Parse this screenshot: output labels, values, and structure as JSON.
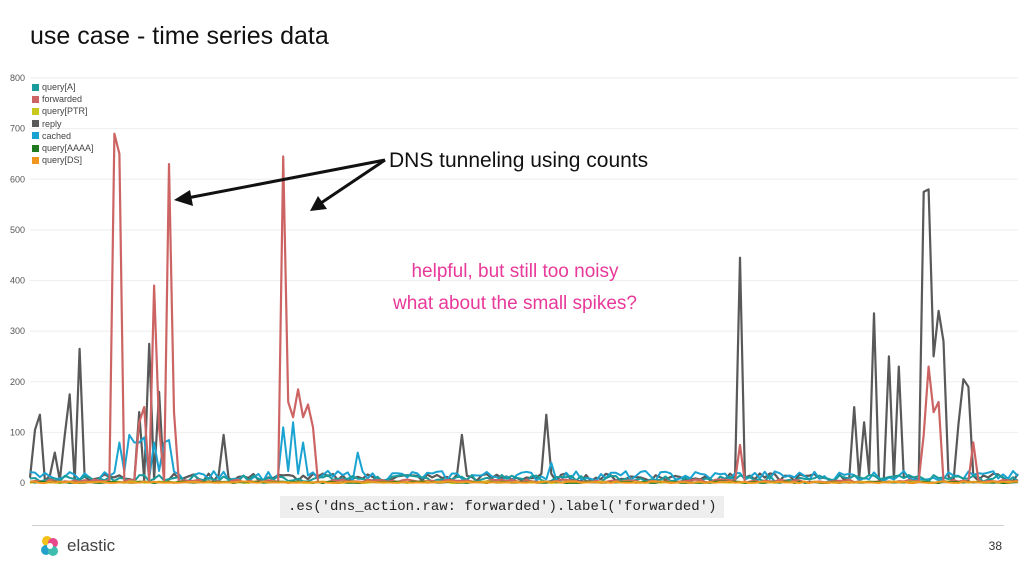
{
  "slide": {
    "title": "use case - time series data",
    "annotation": "DNS tunneling using counts",
    "note_line1": "helpful, but still too noisy",
    "note_line2": "what about the small spikes?",
    "code": ".es('dns_action.raw: forwarded').label('forwarded')",
    "logo_text": "elastic",
    "page_number": "38"
  },
  "chart_data": {
    "type": "line",
    "title": "",
    "xlabel": "",
    "ylabel": "",
    "ylim": [
      0,
      800
    ],
    "yticks": [
      0,
      100,
      200,
      300,
      400,
      500,
      600,
      700,
      800
    ],
    "grid": true,
    "legend_position": "top-left",
    "points": 200,
    "series": [
      {
        "name": "query[A]",
        "color": "#1a9c9c"
      },
      {
        "name": "forwarded",
        "color": "#cd6464",
        "spikes": [
          [
            17,
            690
          ],
          [
            18,
            650
          ],
          [
            22,
            120
          ],
          [
            23,
            150
          ],
          [
            25,
            390
          ],
          [
            26,
            110
          ],
          [
            28,
            630
          ],
          [
            29,
            140
          ],
          [
            51,
            645
          ],
          [
            52,
            160
          ],
          [
            53,
            130
          ],
          [
            54,
            185
          ],
          [
            55,
            130
          ],
          [
            56,
            155
          ],
          [
            57,
            110
          ],
          [
            143,
            75
          ],
          [
            180,
            95
          ],
          [
            181,
            230
          ],
          [
            182,
            140
          ],
          [
            183,
            160
          ],
          [
            190,
            80
          ]
        ]
      },
      {
        "name": "query[PTR]",
        "color": "#c8c81e"
      },
      {
        "name": "reply",
        "color": "#595959",
        "spikes": [
          [
            1,
            105
          ],
          [
            2,
            135
          ],
          [
            5,
            60
          ],
          [
            7,
            95
          ],
          [
            8,
            175
          ],
          [
            10,
            265
          ],
          [
            22,
            140
          ],
          [
            24,
            275
          ],
          [
            26,
            180
          ],
          [
            39,
            95
          ],
          [
            87,
            95
          ],
          [
            104,
            135
          ],
          [
            143,
            445
          ],
          [
            166,
            150
          ],
          [
            168,
            120
          ],
          [
            170,
            335
          ],
          [
            173,
            250
          ],
          [
            175,
            230
          ],
          [
            180,
            575
          ],
          [
            181,
            580
          ],
          [
            182,
            250
          ],
          [
            183,
            340
          ],
          [
            184,
            280
          ],
          [
            187,
            115
          ],
          [
            188,
            205
          ],
          [
            189,
            190
          ]
        ]
      },
      {
        "name": "cached",
        "color": "#1aa3d1",
        "spikes": [
          [
            18,
            80
          ],
          [
            20,
            95
          ],
          [
            21,
            80
          ],
          [
            22,
            80
          ],
          [
            23,
            90
          ],
          [
            25,
            80
          ],
          [
            27,
            80
          ],
          [
            28,
            85
          ],
          [
            51,
            110
          ],
          [
            53,
            120
          ],
          [
            55,
            80
          ],
          [
            66,
            60
          ],
          [
            105,
            40
          ]
        ]
      },
      {
        "name": "query[AAAA]",
        "color": "#1f7a1f"
      },
      {
        "name": "query[DS]",
        "color": "#f0961e"
      }
    ]
  }
}
